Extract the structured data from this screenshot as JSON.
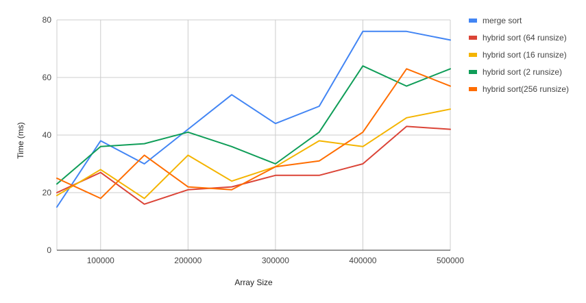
{
  "chart_data": {
    "type": "line",
    "title": "",
    "xlabel": "Array Size",
    "ylabel": "Time (ms)",
    "x": [
      50000,
      100000,
      150000,
      200000,
      250000,
      300000,
      350000,
      400000,
      450000,
      500000
    ],
    "x_ticks": [
      100000,
      200000,
      300000,
      400000,
      500000
    ],
    "x_tick_labels": [
      "100000",
      "200000",
      "300000",
      "400000",
      "500000"
    ],
    "xlim": [
      50000,
      500000
    ],
    "y_ticks": [
      0,
      20,
      40,
      60,
      80
    ],
    "y_tick_labels": [
      "0",
      "20",
      "40",
      "60",
      "80"
    ],
    "ylim": [
      0,
      80
    ],
    "grid": true,
    "legend_position": "right",
    "series": [
      {
        "name": "merge sort",
        "color": "#4285f4",
        "values": [
          15,
          38,
          30,
          42,
          54,
          44,
          50,
          76,
          76,
          73
        ]
      },
      {
        "name": "hybrid sort (64 runsize)",
        "color": "#db4437",
        "values": [
          20,
          27,
          16,
          21,
          22,
          26,
          26,
          30,
          43,
          42
        ]
      },
      {
        "name": "hybrid sort (16 runsize)",
        "color": "#f4b400",
        "values": [
          19,
          28,
          18,
          33,
          24,
          29,
          38,
          36,
          46,
          49
        ]
      },
      {
        "name": "hybrid sort (2 runsize)",
        "color": "#0f9d58",
        "values": [
          23,
          36,
          37,
          41,
          36,
          30,
          41,
          64,
          57,
          63
        ]
      },
      {
        "name": "hybrid sort(256 runsize)",
        "color": "#ff6d00",
        "values": [
          25,
          18,
          33,
          22,
          21,
          29,
          31,
          41,
          63,
          57
        ]
      }
    ]
  }
}
